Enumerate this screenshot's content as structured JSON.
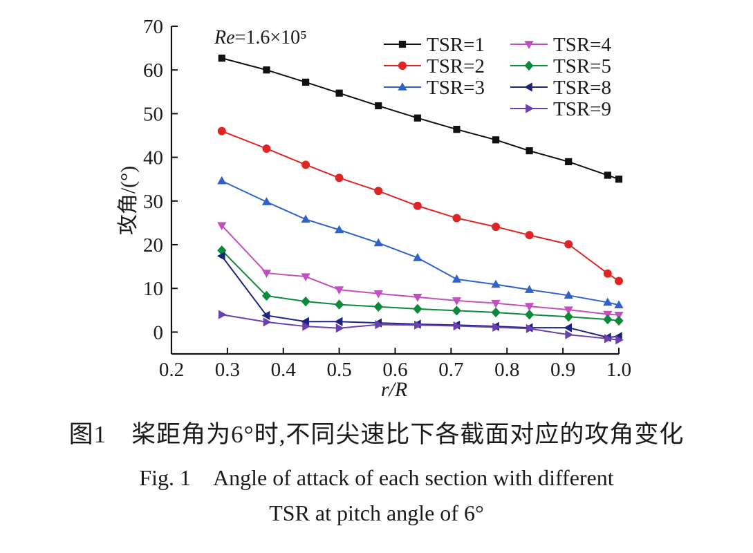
{
  "chart_data": {
    "type": "line",
    "xlabel": "r/R",
    "ylabel": "攻角/(°)",
    "annotation": "Re=1.6×10⁵",
    "xlim": [
      0.2,
      1.0
    ],
    "ylim": [
      -5,
      70
    ],
    "xticks": [
      "0.2",
      "0.3",
      "0.4",
      "0.5",
      "0.6",
      "0.7",
      "0.8",
      "0.9",
      "1.0"
    ],
    "yticks": [
      "0",
      "10",
      "20",
      "30",
      "40",
      "50",
      "60",
      "70"
    ],
    "legend_position": "top-right",
    "x": [
      0.29,
      0.37,
      0.44,
      0.5,
      0.57,
      0.64,
      0.71,
      0.78,
      0.84,
      0.91,
      0.98,
      1.0
    ],
    "series": [
      {
        "name": "TSR=1",
        "color": "#111111",
        "marker": "square",
        "values": [
          62.7,
          60.0,
          57.2,
          54.7,
          51.8,
          49.0,
          46.4,
          44.0,
          41.5,
          39.0,
          35.9,
          35.0
        ]
      },
      {
        "name": "TSR=2",
        "color": "#e02424",
        "marker": "circle",
        "values": [
          46.0,
          42.0,
          38.3,
          35.3,
          32.3,
          28.9,
          26.1,
          24.1,
          22.2,
          20.1,
          13.4,
          11.7
        ]
      },
      {
        "name": "TSR=3",
        "color": "#2f62c8",
        "marker": "triangle-up",
        "values": [
          34.6,
          29.8,
          25.8,
          23.4,
          20.4,
          17.0,
          12.1,
          10.9,
          9.7,
          8.4,
          6.8,
          6.2
        ]
      },
      {
        "name": "TSR=4",
        "color": "#c050c0",
        "marker": "triangle-down",
        "values": [
          24.4,
          13.5,
          12.7,
          9.7,
          8.8,
          8.0,
          7.2,
          6.6,
          5.9,
          5.1,
          4.1,
          3.9
        ]
      },
      {
        "name": "TSR=5",
        "color": "#0a8a3a",
        "marker": "diamond",
        "values": [
          18.7,
          8.3,
          7.0,
          6.3,
          5.8,
          5.3,
          4.9,
          4.5,
          4.0,
          3.5,
          2.9,
          2.6
        ]
      },
      {
        "name": "TSR=8",
        "color": "#1a237e",
        "marker": "triangle-left",
        "values": [
          17.4,
          3.8,
          2.4,
          2.4,
          2.1,
          1.8,
          1.6,
          1.3,
          1.0,
          1.0,
          -1.2,
          -1.0
        ]
      },
      {
        "name": "TSR=9",
        "color": "#6a3fb0",
        "marker": "triangle-right",
        "values": [
          4.0,
          2.3,
          1.3,
          0.9,
          1.7,
          1.6,
          1.4,
          1.1,
          0.8,
          -0.6,
          -1.5,
          -1.8
        ]
      }
    ]
  },
  "caption": {
    "chinese": "图1　桨距角为6°时,不同尖速比下各截面对应的攻角变化",
    "english_line1": "Fig. 1　Angle of attack of each section with different",
    "english_line2": "TSR  at pitch angle of 6°"
  }
}
